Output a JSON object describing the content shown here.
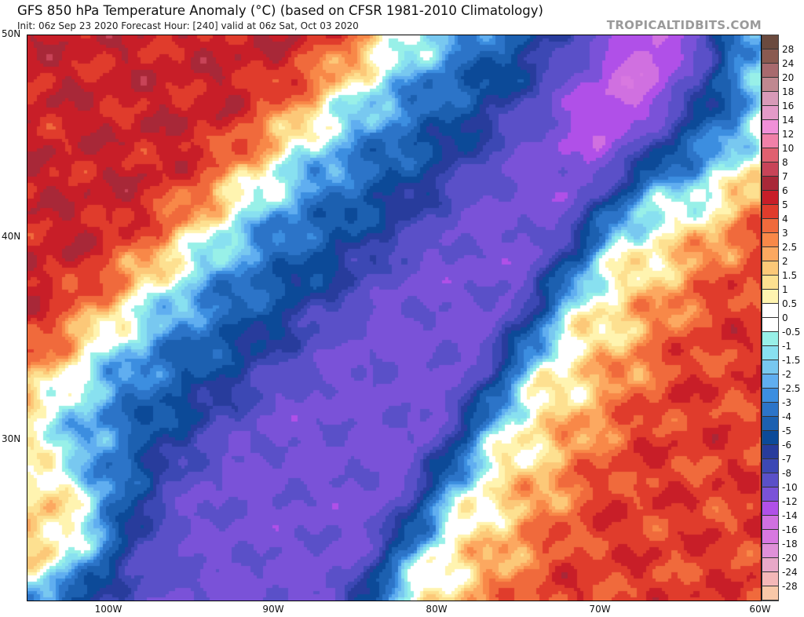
{
  "header": {
    "title": "GFS 850 hPa Temperature Anomaly (°C) (based on CFSR 1981-2010 Climatology)",
    "subtitle": "Init: 06z Sep 23 2020   Forecast Hour: [240]   valid at 06z Sat, Oct 03 2020",
    "brand": "TROPICALTIDBITS.COM"
  },
  "map": {
    "lat_labels": [
      "50N",
      "40N",
      "30N"
    ],
    "lon_labels": [
      "100W",
      "90W",
      "80W",
      "70W",
      "60W"
    ]
  },
  "colorbar": {
    "labels": [
      "28",
      "24",
      "20",
      "18",
      "16",
      "14",
      "12",
      "10",
      "8",
      "7",
      "6",
      "5",
      "4",
      "3",
      "2.5",
      "2",
      "1.5",
      "1",
      "0.5",
      "0",
      "-0.5",
      "-1",
      "-1.5",
      "-2",
      "-2.5",
      "-3",
      "-4",
      "-5",
      "-6",
      "-7",
      "-8",
      "-10",
      "-12",
      "-14",
      "-16",
      "-18",
      "-20",
      "-24",
      "-28"
    ],
    "colors": [
      "#6b4a3e",
      "#8a5a50",
      "#a86a6e",
      "#c08890",
      "#d89ab8",
      "#e49ac8",
      "#f090d8",
      "#f080a8",
      "#e06070",
      "#c84458",
      "#a82838",
      "#c81e28",
      "#e03c2c",
      "#f06a3c",
      "#f88848",
      "#fca860",
      "#fcc878",
      "#fde090",
      "#fff4b0",
      "#ffffff",
      "#ffffff",
      "#98f0e8",
      "#88e0f0",
      "#78c8f0",
      "#60aef0",
      "#3c8ee0",
      "#2c74c8",
      "#1c60b0",
      "#0c4a98",
      "#283c9c",
      "#3c48b4",
      "#5a50c8",
      "#7a52d8",
      "#b050e8",
      "#d070e0",
      "#d878e0",
      "#e090d8",
      "#e8a8c8",
      "#f4b8b8",
      "#f8c8a8"
    ]
  }
}
